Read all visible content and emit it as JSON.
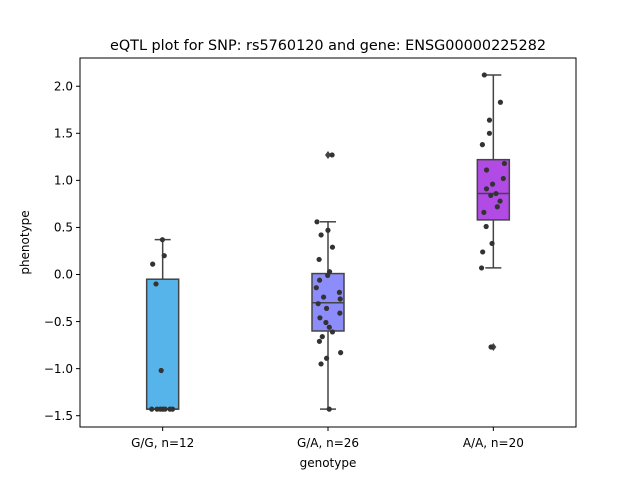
{
  "chart_data": {
    "type": "box",
    "title": "eQTL plot for SNP: rs5760120 and gene: ENSG00000225282",
    "xlabel": "genotype",
    "ylabel": "phenotype",
    "ylim": [
      -1.62,
      2.3
    ],
    "yticks": [
      -1.5,
      -1.0,
      -0.5,
      0.0,
      0.5,
      1.0,
      1.5,
      2.0
    ],
    "ytick_labels": [
      "−1.5",
      "−1.0",
      "−0.5",
      "0.0",
      "0.5",
      "1.0",
      "1.5",
      "2.0"
    ],
    "grid": false,
    "categories": [
      "G/G, n=12",
      "G/A, n=26",
      "A/A, n=20"
    ],
    "boxes": [
      {
        "category": "G/G, n=12",
        "color": "#56b4ea",
        "whislo": -1.43,
        "q1": -1.43,
        "med": -1.43,
        "q3": -0.05,
        "whishi": 0.37,
        "fliers": []
      },
      {
        "category": "G/A, n=26",
        "color": "#8c8cfa",
        "whislo": -1.43,
        "q1": -0.6,
        "med": -0.3,
        "q3": 0.01,
        "whishi": 0.56,
        "fliers": [
          1.27
        ]
      },
      {
        "category": "A/A, n=20",
        "color": "#b24ae6",
        "whislo": 0.07,
        "q1": 0.58,
        "med": 0.86,
        "q3": 1.22,
        "whishi": 2.12,
        "fliers": [
          -0.77
        ]
      }
    ],
    "points": [
      [
        0.37,
        0.2,
        0.11,
        -0.1,
        -1.02,
        -1.43,
        -1.43,
        -1.43,
        -1.43,
        -1.43,
        -1.43,
        -1.43
      ],
      [
        1.27,
        0.56,
        0.47,
        0.42,
        0.29,
        0.16,
        0.03,
        -0.01,
        -0.06,
        -0.14,
        -0.19,
        -0.26,
        -0.31,
        -0.36,
        -0.41,
        -0.46,
        -0.51,
        -0.56,
        -0.61,
        -0.66,
        -0.71,
        -0.83,
        -0.89,
        -0.95,
        -1.43,
        -0.24
      ],
      [
        2.12,
        1.83,
        1.64,
        1.5,
        1.38,
        1.18,
        1.11,
        1.02,
        0.96,
        0.91,
        0.86,
        0.84,
        0.78,
        0.72,
        0.66,
        0.51,
        0.33,
        0.24,
        0.07,
        -0.77
      ]
    ]
  }
}
